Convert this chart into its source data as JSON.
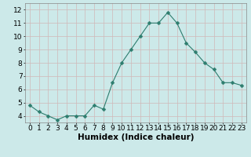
{
  "x": [
    0,
    1,
    2,
    3,
    4,
    5,
    6,
    7,
    8,
    9,
    10,
    11,
    12,
    13,
    14,
    15,
    16,
    17,
    18,
    19,
    20,
    21,
    22,
    23
  ],
  "y": [
    4.8,
    4.3,
    4.0,
    3.7,
    4.0,
    4.0,
    4.0,
    4.8,
    4.5,
    6.5,
    8.0,
    9.0,
    10.0,
    11.0,
    11.0,
    11.8,
    11.0,
    9.5,
    8.8,
    8.0,
    7.5,
    6.5,
    6.5,
    6.3
  ],
  "line_color": "#2d7d6e",
  "marker_color": "#2d7d6e",
  "bg_color": "#cce9e9",
  "grid_color": "#d0b8b8",
  "xlabel": "Humidex (Indice chaleur)",
  "xlabel_fontsize": 7.5,
  "tick_fontsize": 6.5,
  "xlim": [
    -0.5,
    23.5
  ],
  "ylim": [
    3.5,
    12.5
  ],
  "yticks": [
    4,
    5,
    6,
    7,
    8,
    9,
    10,
    11,
    12
  ],
  "xticks": [
    0,
    1,
    2,
    3,
    4,
    5,
    6,
    7,
    8,
    9,
    10,
    11,
    12,
    13,
    14,
    15,
    16,
    17,
    18,
    19,
    20,
    21,
    22,
    23
  ],
  "marker_size": 2.5,
  "marker_style": "D"
}
